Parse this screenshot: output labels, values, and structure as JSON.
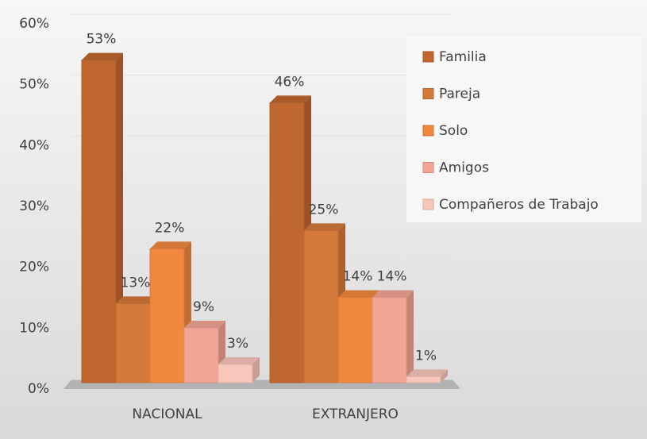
{
  "chart_data": {
    "type": "bar3d",
    "categories": [
      "NACIONAL",
      "EXTRANJERO"
    ],
    "series": [
      {
        "name": "Familia",
        "color": "#c0672f",
        "values": [
          53,
          46
        ],
        "value_labels": [
          "53%",
          "46%"
        ]
      },
      {
        "name": "Pareja",
        "color": "#d4793a",
        "values": [
          13,
          25
        ],
        "value_labels": [
          "13%",
          "25%"
        ]
      },
      {
        "name": "Solo",
        "color": "#f0883f",
        "values": [
          22,
          14
        ],
        "value_labels": [
          "22%",
          "14%"
        ]
      },
      {
        "name": "Amigos",
        "color": "#f3a595",
        "values": [
          9,
          14
        ],
        "value_labels": [
          "9%",
          "14%"
        ]
      },
      {
        "name": "Compañeros de Trabajo",
        "color": "#f8c6ba",
        "values": [
          3,
          1
        ],
        "value_labels": [
          "3%",
          "1%"
        ]
      }
    ],
    "ylim": [
      0,
      60
    ],
    "yticks": [
      {
        "value": 0,
        "label": "0%"
      },
      {
        "value": 10,
        "label": "10%"
      },
      {
        "value": 20,
        "label": "20%"
      },
      {
        "value": 30,
        "label": "30%"
      },
      {
        "value": 40,
        "label": "40%"
      },
      {
        "value": 50,
        "label": "50%"
      },
      {
        "value": 60,
        "label": "60%"
      }
    ],
    "grid": true,
    "legend": "right"
  }
}
